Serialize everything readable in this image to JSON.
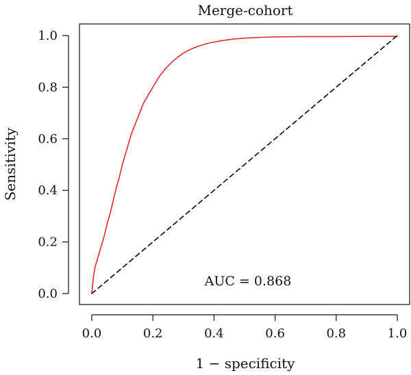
{
  "chart_data": {
    "type": "line",
    "title": "Merge-cohort",
    "xlabel": "1 − specificity",
    "ylabel": "Sensitivity",
    "xlim": [
      0.0,
      1.0
    ],
    "ylim": [
      0.0,
      1.0
    ],
    "x_ticks": [
      "0.0",
      "0.2",
      "0.4",
      "0.6",
      "0.8",
      "1.0"
    ],
    "y_ticks": [
      "0.0",
      "0.2",
      "0.4",
      "0.6",
      "0.8",
      "1.0"
    ],
    "grid": false,
    "annotation": "AUC = 0.868",
    "series": [
      {
        "color": "#e41a1c",
        "x": [
          0.0,
          0.005,
          0.01,
          0.02,
          0.03,
          0.04,
          0.05,
          0.06,
          0.07,
          0.08,
          0.09,
          0.1,
          0.11,
          0.12,
          0.13,
          0.14,
          0.15,
          0.16,
          0.17,
          0.18,
          0.2,
          0.22,
          0.24,
          0.26,
          0.28,
          0.3,
          0.32,
          0.34,
          0.36,
          0.38,
          0.4,
          0.43,
          0.46,
          0.5,
          0.55,
          0.6,
          0.7,
          0.8,
          0.9,
          1.0
        ],
        "y": [
          0.0,
          0.06,
          0.1,
          0.14,
          0.18,
          0.22,
          0.27,
          0.31,
          0.36,
          0.41,
          0.45,
          0.5,
          0.54,
          0.58,
          0.62,
          0.65,
          0.68,
          0.71,
          0.74,
          0.76,
          0.8,
          0.84,
          0.87,
          0.895,
          0.915,
          0.932,
          0.945,
          0.955,
          0.963,
          0.97,
          0.975,
          0.981,
          0.986,
          0.99,
          0.993,
          0.995,
          0.996,
          0.996,
          0.997,
          0.997
        ]
      },
      {
        "color": "#000000",
        "dash": true,
        "x": [
          0.0,
          1.0
        ],
        "y": [
          0.0,
          1.0
        ]
      }
    ]
  }
}
